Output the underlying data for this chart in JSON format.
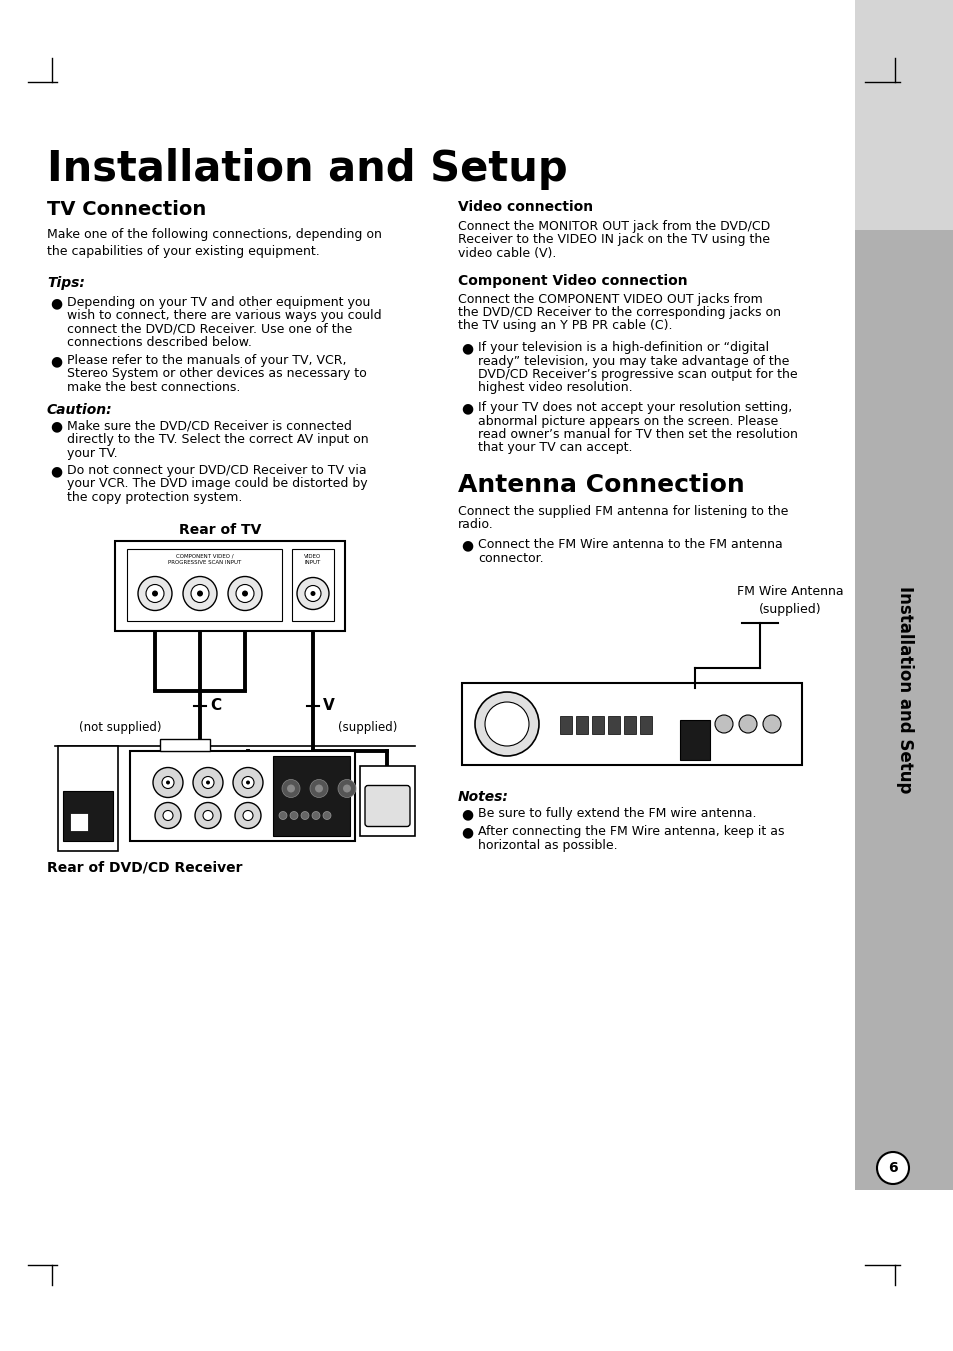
{
  "bg_color": "#ffffff",
  "page_title": "Installation and Setup",
  "section1_title": "TV Connection",
  "section1_intro": "Make one of the following connections, depending on\nthe capabilities of your existing equipment.",
  "tips_title": "Tips:",
  "tips_items": [
    "Depending on your TV and other equipment you\nwish to connect, there are various ways you could\nconnect the DVD/CD Receiver. Use one of the\nconnections described below.",
    "Please refer to the manuals of your TV, VCR,\nStereo System or other devices as necessary to\nmake the best connections."
  ],
  "caution_title": "Caution:",
  "caution_items": [
    "Make sure the DVD/CD Receiver is connected\ndirectly to the TV. Select the correct AV input on\nyour TV.",
    "Do not connect your DVD/CD Receiver to TV via\nyour VCR. The DVD image could be distorted by\nthe copy protection system."
  ],
  "rear_tv_label": "Rear of TV",
  "c_label": "C",
  "v_label": "V",
  "not_supplied_label": "(not supplied)",
  "supplied_label": "(supplied)",
  "rear_dvd_label": "Rear of DVD/CD Receiver",
  "right_video_title": "Video connection",
  "right_video_text": "Connect the MONITOR OUT jack from the DVD/CD\nReceiver to the VIDEO IN jack on the TV using the\nvideo cable (V).",
  "right_component_title": "Component Video connection",
  "right_component_text": "Connect the COMPONENT VIDEO OUT jacks from\nthe DVD/CD Receiver to the corresponding jacks on\nthe TV using an Y PB PR cable (C).",
  "right_component_bullet1": "If your television is a high-definition or “digital\nready” television, you may take advantage of the\nDVD/CD Receiver’s progressive scan output for the\nhighest video resolution.",
  "right_component_bullet2": "If your TV does not accept your resolution setting,\nabnormal picture appears on the screen. Please\nread owner’s manual for TV then set the resolution\nthat your TV can accept.",
  "antenna_title": "Antenna Connection",
  "antenna_intro": "Connect the supplied FM antenna for listening to the\nradio.",
  "antenna_bullet": "Connect the FM Wire antenna to the FM antenna\nconnector.",
  "fm_wire_label": "FM Wire Antenna\n(supplied)",
  "notes_title": "Notes:",
  "notes_items": [
    "Be sure to fully extend the FM wire antenna.",
    "After connecting the FM Wire antenna, keep it as\nhorizontal as possible."
  ],
  "sidebar_text": "Installation and Setup",
  "page_number": "6"
}
